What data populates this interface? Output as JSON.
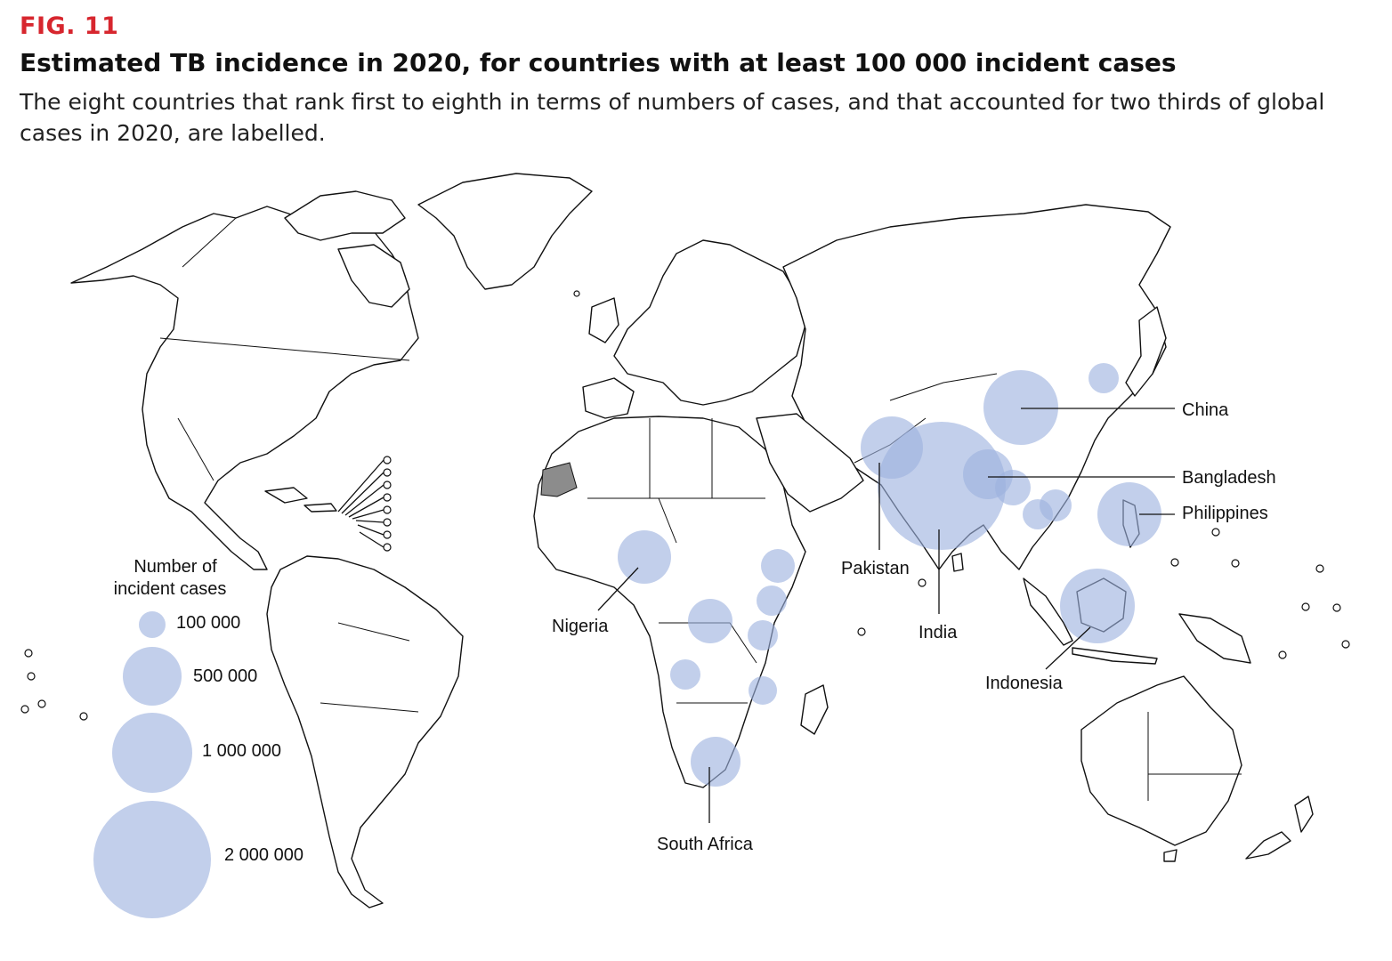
{
  "figure": {
    "label": "FIG. 11",
    "title": "Estimated TB incidence in 2020, for countries with at least 100 000 incident cases",
    "subtitle": "The eight countries that rank first to eighth in terms of numbers of cases, and that accounted for two thirds of global cases in 2020, are labelled."
  },
  "legend": {
    "title_line1": "Number of",
    "title_line2": "incident cases",
    "sizes": [
      {
        "value": 100000,
        "label": "100 000"
      },
      {
        "value": 500000,
        "label": "500 000"
      },
      {
        "value": 1000000,
        "label": "1 000 000"
      },
      {
        "value": 2000000,
        "label": "2 000 000"
      }
    ]
  },
  "labelled_countries": [
    {
      "name": "India"
    },
    {
      "name": "China"
    },
    {
      "name": "Indonesia"
    },
    {
      "name": "Philippines"
    },
    {
      "name": "Pakistan"
    },
    {
      "name": "Nigeria"
    },
    {
      "name": "Bangladesh"
    },
    {
      "name": "South Africa"
    }
  ],
  "colors": {
    "bubble": "#9db1df",
    "fig_label": "#d7262e",
    "highlight_gray": "#8c8c8c"
  }
}
